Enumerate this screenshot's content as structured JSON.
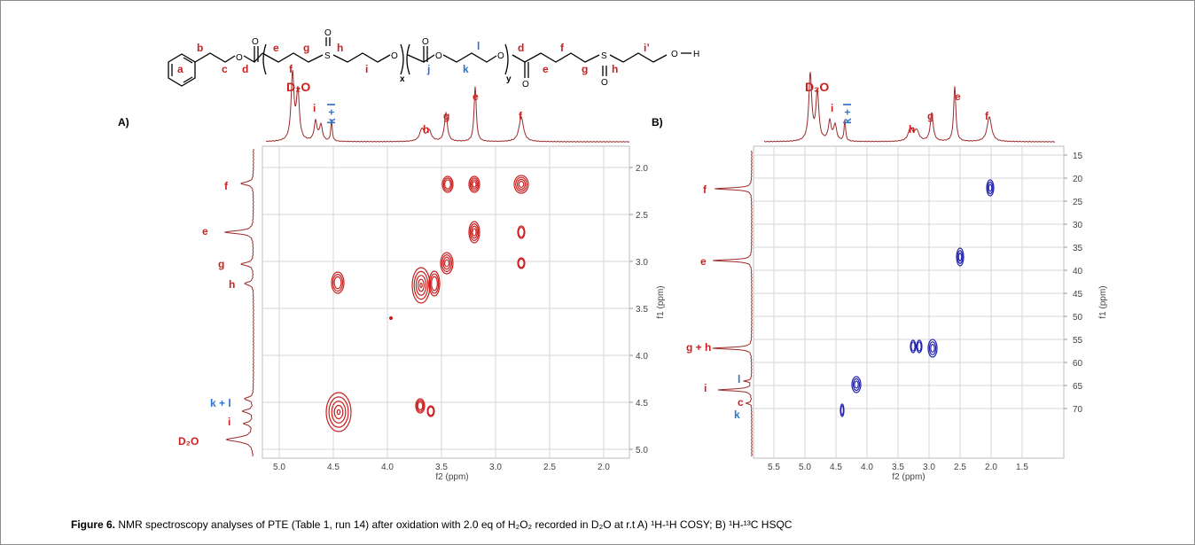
{
  "structure": {
    "atoms": {
      "O": "O",
      "S": "S",
      "H": "H"
    },
    "labels": {
      "a": "a",
      "b": "b",
      "c": "c",
      "d": "d",
      "e": "e",
      "f": "f",
      "g": "g",
      "h": "h",
      "i": "i",
      "x": "x",
      "j": "j",
      "k": "k",
      "l": "l",
      "y": "y",
      "d2": "d",
      "e2": "e",
      "f2": "f",
      "g2": "g",
      "h2": "h",
      "i2": "i’"
    },
    "colors": {
      "red": "#cc1f1f",
      "blue": "#2a74c9",
      "bond": "#000000"
    }
  },
  "panel_a": {
    "label": "A)",
    "top_peaks": {
      "d2o": "D₂O",
      "i": "i",
      "kl": "k + l",
      "h": "h",
      "g": "g",
      "e": "e",
      "f": "f"
    },
    "left_labels": {
      "f": "f",
      "e": "e",
      "g": "g",
      "h": "h",
      "kl": "k + l",
      "i": "i",
      "d2o": "D₂O"
    },
    "xlabel": "f2 (ppm)",
    "ylabel": "f1 (ppm)",
    "xticks": [
      "5.0",
      "4.5",
      "4.0",
      "3.5",
      "3.0",
      "2.5",
      "2.0"
    ],
    "yticks": [
      "2.0",
      "2.5",
      "3.0",
      "3.5",
      "4.0",
      "4.5",
      "5.0"
    ],
    "contour_color": "#cc1f1f"
  },
  "panel_b": {
    "label": "B)",
    "top_peaks": {
      "d2o": "D₂O",
      "i": "i",
      "kl": "k + l",
      "h": "h",
      "g": "g",
      "e": "e",
      "f": "f"
    },
    "left_labels": {
      "f": "f",
      "e": "e",
      "gh": "g + h",
      "l": "l",
      "i": "i",
      "c": "c",
      "k": "k"
    },
    "xlabel": "f2 (ppm)",
    "ylabel": "f1 (ppm)",
    "xticks": [
      "5.5",
      "5.0",
      "4.5",
      "4.0",
      "3.5",
      "3.0",
      "2.5",
      "2.0",
      "1.5"
    ],
    "yticks": [
      "15",
      "20",
      "25",
      "30",
      "35",
      "40",
      "45",
      "50",
      "55",
      "60",
      "65",
      "70"
    ],
    "contour_color": "#2323b0"
  },
  "caption": {
    "label": "Figure 6.",
    "text": " NMR spectroscopy analyses of PTE (Table 1, run 14) after oxidation with 2.0 eq of H₂O₂ recorded in D₂O at r.t A) ¹H-¹H COSY; B) ¹H-¹³C HSQC"
  }
}
